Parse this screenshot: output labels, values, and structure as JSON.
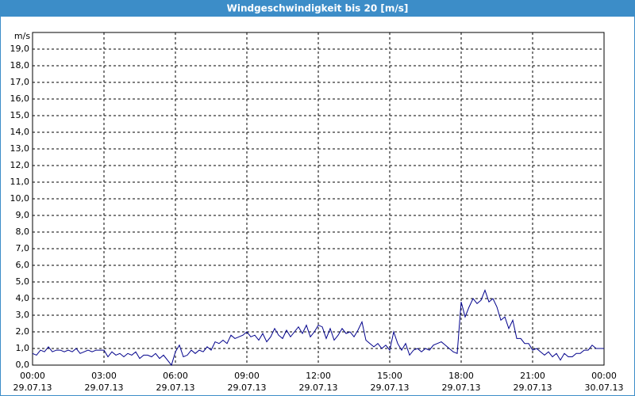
{
  "chart_data": {
    "type": "line",
    "title": "Windgeschwindigkeit bis 20 [m/s]",
    "y_label": "m/s",
    "grid": true,
    "x": [
      0,
      10,
      20,
      30,
      40,
      50,
      60,
      70,
      80,
      90,
      100,
      110,
      120,
      130,
      140,
      150,
      160,
      170,
      180,
      190,
      200,
      210,
      220,
      230,
      240,
      250,
      260,
      270,
      280,
      290,
      300,
      310,
      320,
      330,
      340,
      350,
      360,
      370,
      380,
      390,
      400,
      410,
      420,
      430,
      440,
      450,
      460,
      470,
      480,
      490,
      500,
      510,
      520,
      530,
      540,
      550,
      560,
      570,
      580,
      590,
      600,
      610,
      620,
      630,
      640,
      650,
      660,
      670,
      680,
      690,
      700,
      710,
      720,
      730,
      740,
      750,
      760,
      770,
      780,
      790,
      800,
      810,
      820,
      830,
      840,
      850,
      860,
      870,
      880,
      890,
      900,
      910,
      920,
      930,
      940,
      950,
      960,
      970,
      980,
      990,
      1000,
      1010,
      1020,
      1030,
      1040,
      1050,
      1060,
      1070,
      1080,
      1090,
      1100,
      1110,
      1120,
      1130,
      1140,
      1150,
      1160,
      1170,
      1180,
      1190,
      1200,
      1210,
      1220,
      1230,
      1240,
      1250,
      1260,
      1270,
      1280,
      1290,
      1300,
      1310,
      1320,
      1330,
      1340,
      1350,
      1360,
      1370,
      1380,
      1390,
      1400,
      1410,
      1420,
      1430,
      1440
    ],
    "series": [
      {
        "name": "Windgeschwindigkeit",
        "color": "#00008b",
        "values": [
          0.7,
          0.6,
          0.9,
          0.8,
          1.1,
          0.8,
          0.9,
          0.9,
          0.8,
          0.9,
          0.8,
          1.0,
          0.7,
          0.8,
          0.9,
          0.8,
          0.9,
          0.9,
          0.9,
          0.5,
          0.8,
          0.6,
          0.7,
          0.5,
          0.7,
          0.6,
          0.8,
          0.4,
          0.6,
          0.6,
          0.5,
          0.7,
          0.4,
          0.6,
          0.3,
          0.0,
          0.8,
          1.2,
          0.5,
          0.6,
          0.9,
          0.7,
          0.9,
          0.8,
          1.1,
          0.9,
          1.4,
          1.3,
          1.5,
          1.3,
          1.8,
          1.6,
          1.7,
          1.8,
          2.0,
          1.7,
          1.8,
          1.5,
          1.9,
          1.4,
          1.7,
          2.2,
          1.8,
          1.6,
          2.1,
          1.7,
          2.0,
          2.3,
          1.9,
          2.4,
          1.7,
          2.0,
          2.4,
          2.3,
          1.6,
          2.2,
          1.5,
          1.8,
          2.2,
          1.9,
          2.0,
          1.7,
          2.1,
          2.6,
          1.5,
          1.3,
          1.1,
          1.3,
          1.0,
          1.2,
          0.9,
          2.0,
          1.3,
          0.9,
          1.3,
          0.6,
          0.9,
          1.0,
          0.8,
          1.0,
          0.9,
          1.2,
          1.3,
          1.4,
          1.2,
          1.0,
          0.8,
          0.7,
          3.8,
          2.9,
          3.5,
          4.0,
          3.7,
          3.9,
          4.5,
          3.8,
          4.0,
          3.5,
          2.7,
          2.9,
          2.2,
          2.7,
          1.6,
          1.6,
          1.3,
          1.3,
          0.9,
          1.0,
          0.8,
          0.6,
          0.8,
          0.5,
          0.7,
          0.3,
          0.7,
          0.5,
          0.5,
          0.7,
          0.7,
          0.9,
          0.9,
          1.2,
          1.0,
          1.0,
          1.0
        ]
      }
    ],
    "xlim": [
      0,
      1440
    ],
    "xticks": [
      {
        "value": 0,
        "label": "00:00",
        "date": "29.07.13"
      },
      {
        "value": 180,
        "label": "03:00",
        "date": "29.07.13"
      },
      {
        "value": 360,
        "label": "06:00",
        "date": "29.07.13"
      },
      {
        "value": 540,
        "label": "09:00",
        "date": "29.07.13"
      },
      {
        "value": 720,
        "label": "12:00",
        "date": "29.07.13"
      },
      {
        "value": 900,
        "label": "15:00",
        "date": "29.07.13"
      },
      {
        "value": 1080,
        "label": "18:00",
        "date": "29.07.13"
      },
      {
        "value": 1260,
        "label": "21:00",
        "date": "29.07.13"
      },
      {
        "value": 1440,
        "label": "00:00",
        "date": "30.07.13"
      }
    ],
    "ylim": [
      0,
      20
    ],
    "yticks": [
      {
        "value": 0,
        "label": "0,0"
      },
      {
        "value": 1,
        "label": "1,0"
      },
      {
        "value": 2,
        "label": "2,0"
      },
      {
        "value": 3,
        "label": "3,0"
      },
      {
        "value": 4,
        "label": "4,0"
      },
      {
        "value": 5,
        "label": "5,0"
      },
      {
        "value": 6,
        "label": "6,0"
      },
      {
        "value": 7,
        "label": "7,0"
      },
      {
        "value": 8,
        "label": "8,0"
      },
      {
        "value": 9,
        "label": "9,0"
      },
      {
        "value": 10,
        "label": "10,0"
      },
      {
        "value": 11,
        "label": "11,0"
      },
      {
        "value": 12,
        "label": "12,0"
      },
      {
        "value": 13,
        "label": "13,0"
      },
      {
        "value": 14,
        "label": "14,0"
      },
      {
        "value": 15,
        "label": "15,0"
      },
      {
        "value": 16,
        "label": "16,0"
      },
      {
        "value": 17,
        "label": "17,0"
      },
      {
        "value": 18,
        "label": "18,0"
      },
      {
        "value": 19,
        "label": "19,0"
      }
    ]
  }
}
